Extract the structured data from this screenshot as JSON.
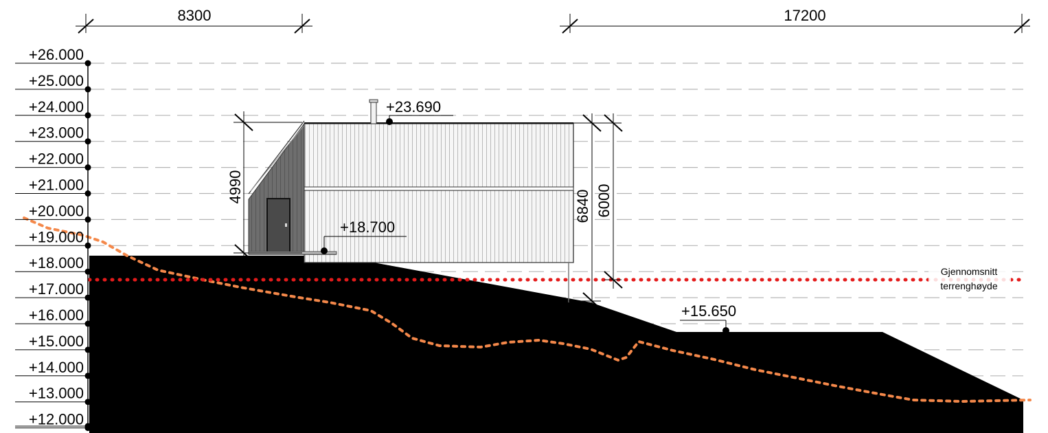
{
  "levels": [
    "+26.000",
    "+25.000",
    "+24.000",
    "+23.000",
    "+22.000",
    "+21.000",
    "+20.000",
    "+19.000",
    "+18.000",
    "+17.000",
    "+16.000",
    "+15.000",
    "+14.000",
    "+13.000",
    "+12.000"
  ],
  "dimensions": {
    "top_left": "8300",
    "top_right": "17200",
    "height_left": "4990",
    "height_right_a": "6840",
    "height_right_b": "6000"
  },
  "spot_levels": {
    "ridge": "+23.690",
    "floor": "+18.700",
    "terrain_low": "+15.650"
  },
  "average_terrain_label": [
    "Gjennomsnitt",
    "terrenghøyde"
  ],
  "colors": {
    "terrain_fill": "#000000",
    "existing_terrain": "#f4884a",
    "average_line": "#e41b1b",
    "grid": "#b5b5b5",
    "cladding_light": "#f2f2f2",
    "cladding_dark": "#6f6f6f"
  }
}
